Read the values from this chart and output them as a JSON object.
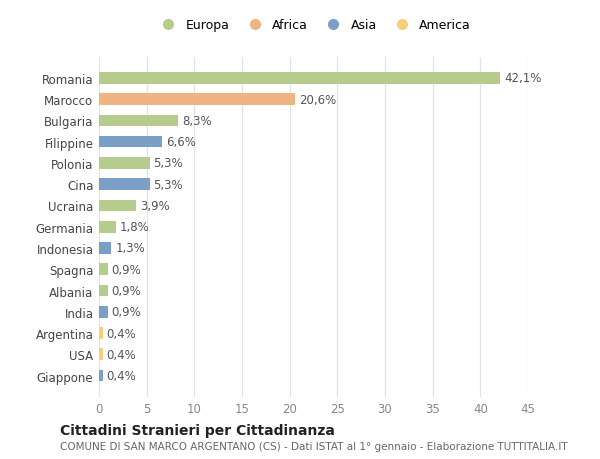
{
  "countries": [
    "Romania",
    "Marocco",
    "Bulgaria",
    "Filippine",
    "Polonia",
    "Cina",
    "Ucraina",
    "Germania",
    "Indonesia",
    "Spagna",
    "Albania",
    "India",
    "Argentina",
    "USA",
    "Giappone"
  ],
  "values": [
    42.1,
    20.6,
    8.3,
    6.6,
    5.3,
    5.3,
    3.9,
    1.8,
    1.3,
    0.9,
    0.9,
    0.9,
    0.4,
    0.4,
    0.4
  ],
  "labels": [
    "42,1%",
    "20,6%",
    "8,3%",
    "6,6%",
    "5,3%",
    "5,3%",
    "3,9%",
    "1,8%",
    "1,3%",
    "0,9%",
    "0,9%",
    "0,9%",
    "0,4%",
    "0,4%",
    "0,4%"
  ],
  "colors": [
    "#b5cc8e",
    "#f0b482",
    "#b5cc8e",
    "#7b9fc7",
    "#b5cc8e",
    "#7b9fc7",
    "#b5cc8e",
    "#b5cc8e",
    "#7b9fc7",
    "#b5cc8e",
    "#b5cc8e",
    "#7b9fc7",
    "#f5d07a",
    "#f5d07a",
    "#7b9fc7"
  ],
  "legend_labels": [
    "Europa",
    "Africa",
    "Asia",
    "America"
  ],
  "legend_colors": [
    "#b5cc8e",
    "#f0b482",
    "#7b9fc7",
    "#f5d07a"
  ],
  "title": "Cittadini Stranieri per Cittadinanza",
  "subtitle": "COMUNE DI SAN MARCO ARGENTANO (CS) - Dati ISTAT al 1° gennaio - Elaborazione TUTTITALIA.IT",
  "xlim": [
    0,
    45
  ],
  "xticks": [
    0,
    5,
    10,
    15,
    20,
    25,
    30,
    35,
    40,
    45
  ],
  "bg_color": "#ffffff",
  "grid_color": "#e0e4ea",
  "bar_height": 0.55,
  "label_fontsize": 8.5,
  "tick_fontsize": 8.5,
  "title_fontsize": 10,
  "subtitle_fontsize": 7.5
}
